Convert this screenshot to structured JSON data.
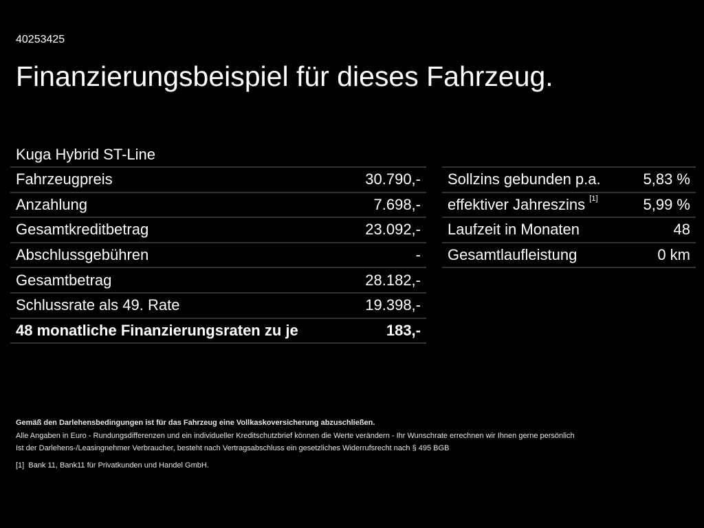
{
  "id": "40253425",
  "title": "Finanzierungsbeispiel für dieses Fahrzeug.",
  "model": "Kuga Hybrid ST-Line",
  "left_rows": [
    {
      "label": "Fahrzeugpreis",
      "value": "30.790,-"
    },
    {
      "label": "Anzahlung",
      "value": "7.698,-"
    },
    {
      "label": "Gesamtkreditbetrag",
      "value": "23.092,-"
    },
    {
      "label": "Abschlussgebühren",
      "value": "-"
    },
    {
      "label": "Gesamtbetrag",
      "value": "28.182,-"
    },
    {
      "label": "Schlussrate als 49. Rate",
      "value": "19.398,-"
    },
    {
      "label": "48 monatliche Finanzierungsraten zu je",
      "value": "183,-"
    }
  ],
  "right_rows": [
    {
      "label": "Sollzins gebunden p.a.",
      "value": "5,83 %"
    },
    {
      "label": "effektiver Jahreszins",
      "sup": "[1]",
      "value": "5,99 %"
    },
    {
      "label": "Laufzeit in Monaten",
      "value": "48"
    },
    {
      "label": "Gesamtlaufleistung",
      "value": "0 km"
    }
  ],
  "footer": {
    "bold": "Gemäß den Darlehensbedingungen ist für das Fahrzeug eine Vollkaskoversicherung abzuschließen.",
    "line1": "Alle Angaben in Euro - Rundungsdifferenzen und ein individueller Kreditschutzbrief können die Werte verändern - Ihr Wunschrate errechnen wir Ihnen gerne persönlich",
    "line2": "Ist der Darlehens-/Leasingnehmer Verbraucher, besteht nach Vertragsabschluss ein gesetzliches Widerrufsrecht nach § 495 BGB",
    "fn_mark": "[1]",
    "fn_text": "Bank 11, Bank11 für Privatkunden und Handel GmbH."
  }
}
